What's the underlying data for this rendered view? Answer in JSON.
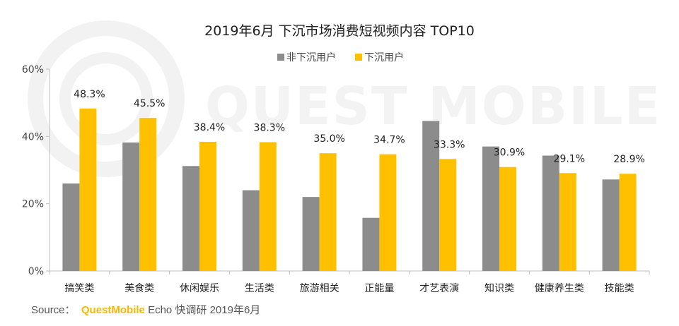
{
  "chart_data": {
    "type": "bar",
    "title": "2019年6月 下沉市场消费短视频内容 TOP10",
    "categories": [
      "搞笑类",
      "美食类",
      "休闲娱乐",
      "生活类",
      "旅游相关",
      "正能量",
      "才艺表演",
      "知识类",
      "健康养生类",
      "技能类"
    ],
    "series": [
      {
        "name": "非下沉用户",
        "color": "#8c8c8c",
        "values": [
          26.0,
          38.2,
          31.2,
          24.0,
          22.0,
          15.8,
          44.6,
          37.0,
          34.3,
          27.2
        ]
      },
      {
        "name": "下沉用户",
        "color": "#ffc000",
        "values": [
          48.3,
          45.5,
          38.4,
          38.3,
          35.0,
          34.7,
          33.3,
          30.9,
          29.1,
          28.9
        ]
      }
    ],
    "data_labels": [
      "48.3%",
      "45.5%",
      "38.4%",
      "38.3%",
      "35.0%",
      "34.7%",
      "33.3%",
      "30.9%",
      "29.1%",
      "28.9%"
    ],
    "ylim": [
      0,
      60
    ],
    "yticks": [
      0,
      20,
      40,
      60
    ],
    "ytick_labels": [
      "0%",
      "20%",
      "40%",
      "60%"
    ],
    "xlabel": "",
    "ylabel": "",
    "legend_position": "top-center"
  },
  "watermark": {
    "text": "QUEST MOBILE"
  },
  "source": {
    "prefix": "Source：",
    "brand": "QuestMobile",
    "rest": "Echo 快调研 2019年6月"
  }
}
